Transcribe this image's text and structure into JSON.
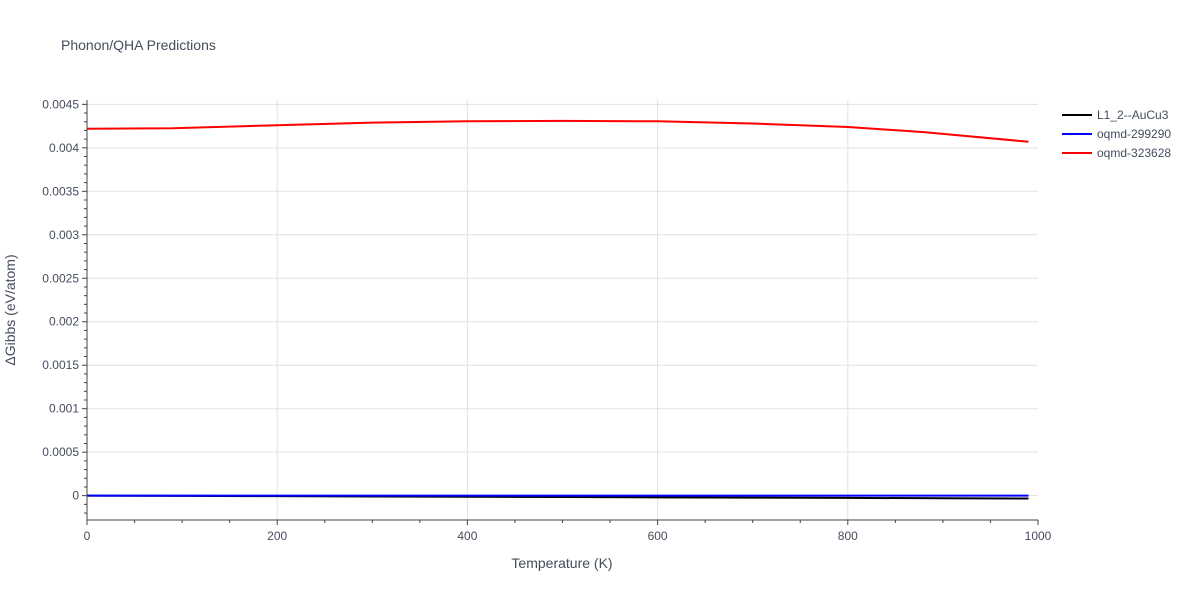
{
  "chart_data": {
    "type": "line",
    "title": "Phonon/QHA Predictions",
    "xlabel": "Temperature (K)",
    "ylabel": "ΔGibbs (eV/atom)",
    "xlim": [
      0,
      1000
    ],
    "ylim": [
      -0.00028,
      0.00455
    ],
    "x_ticks": [
      0,
      200,
      400,
      600,
      800,
      1000
    ],
    "x_tick_labels": [
      "0",
      "200",
      "400",
      "600",
      "800",
      "1000"
    ],
    "y_ticks": [
      0,
      0.0005,
      0.001,
      0.0015,
      0.002,
      0.0025,
      0.003,
      0.0035,
      0.004,
      0.0045
    ],
    "y_tick_labels": [
      "0",
      "0.0005",
      "0.001",
      "0.0015",
      "0.002",
      "0.0025",
      "0.003",
      "0.0035",
      "0.004",
      "0.0045"
    ],
    "grid": true,
    "legend_position": "top-right",
    "series": [
      {
        "name": "L1_2--AuCu3",
        "color": "#000000",
        "x": [
          0,
          100,
          200,
          300,
          400,
          500,
          600,
          700,
          800,
          900,
          990
        ],
        "y": [
          0,
          -3e-06,
          -6e-06,
          -1e-05,
          -1.3e-05,
          -1.6e-05,
          -2e-05,
          -2.3e-05,
          -2.6e-05,
          -3e-05,
          -3.3e-05
        ]
      },
      {
        "name": "oqmd-299290",
        "color": "#0000ff",
        "x": [
          0,
          100,
          200,
          300,
          400,
          500,
          600,
          700,
          800,
          900,
          990
        ],
        "y": [
          0,
          0,
          0,
          0,
          0,
          0,
          0,
          0,
          0,
          0,
          0
        ]
      },
      {
        "name": "oqmd-323628",
        "color": "#ff0000",
        "x": [
          0,
          90,
          200,
          300,
          400,
          500,
          600,
          700,
          800,
          880,
          990
        ],
        "y": [
          0.00422,
          0.004225,
          0.00426,
          0.00429,
          0.004305,
          0.00431,
          0.004305,
          0.00428,
          0.00424,
          0.00418,
          0.00407
        ]
      }
    ]
  }
}
